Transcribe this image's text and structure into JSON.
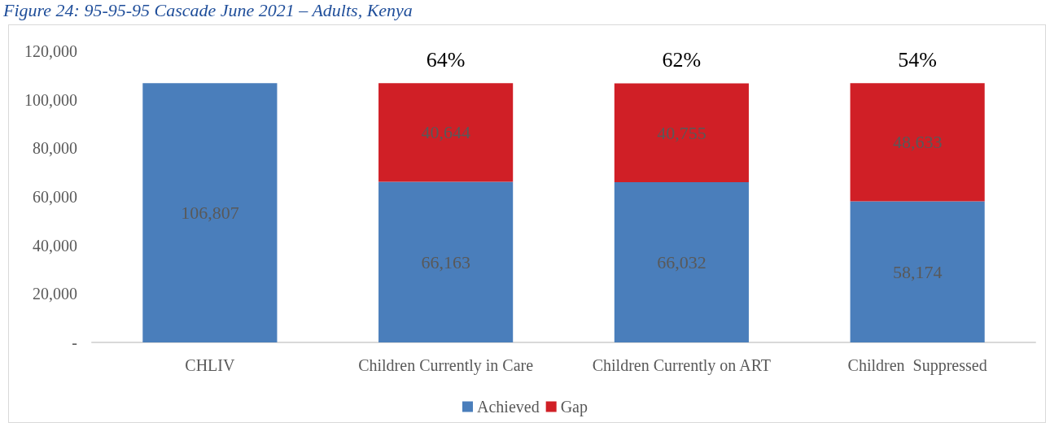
{
  "chart_data": {
    "type": "bar",
    "title": "Figure 24: 95-95-95 Cascade June 2021 – Adults, Kenya",
    "categories": [
      "CHLIV",
      "Children Currently in Care",
      "Children Currently on ART",
      "Children  Suppressed"
    ],
    "stacked": true,
    "series": [
      {
        "name": "Achieved",
        "color": "#4a7ebb",
        "values": [
          106807,
          66163,
          66032,
          58174
        ],
        "value_labels": [
          "106,807",
          "66,163",
          "66,032",
          "58,174"
        ]
      },
      {
        "name": "Gap",
        "color": "#d01f26",
        "values": [
          null,
          40644,
          40755,
          48633
        ],
        "value_labels": [
          null,
          "40,644",
          "40,755",
          "48,633"
        ]
      }
    ],
    "ylim": [
      0,
      120000
    ],
    "yticks": [
      {
        "value": 0,
        "label": "-"
      },
      {
        "value": 20000,
        "label": "20,000"
      },
      {
        "value": 40000,
        "label": "40,000"
      },
      {
        "value": 60000,
        "label": "60,000"
      },
      {
        "value": 80000,
        "label": "80,000"
      },
      {
        "value": 100000,
        "label": "100,000"
      },
      {
        "value": 120000,
        "label": "120,000"
      }
    ],
    "grid": false,
    "legend": "bottom",
    "annotations": [
      "64%",
      "62%",
      "54%"
    ]
  }
}
